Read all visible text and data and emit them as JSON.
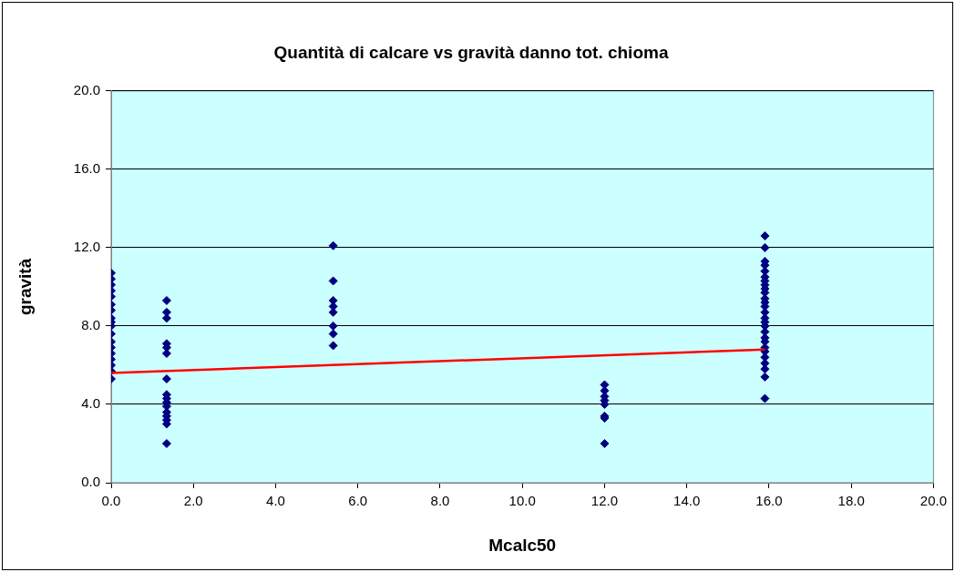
{
  "chart_data": {
    "type": "scatter",
    "title": "Quantità di calcare vs gravità danno tot. chioma",
    "xlabel": "Mcalc50",
    "ylabel": "gravità",
    "xlim": [
      0,
      20
    ],
    "xticks": [
      {
        "value": 0,
        "label": "0.0"
      },
      {
        "value": 2,
        "label": "2.0"
      },
      {
        "value": 4,
        "label": "4.0"
      },
      {
        "value": 6,
        "label": "6.0"
      },
      {
        "value": 8,
        "label": "8.0"
      },
      {
        "value": 10,
        "label": "10.0"
      },
      {
        "value": 12,
        "label": "12.0"
      },
      {
        "value": 14,
        "label": "14.0"
      },
      {
        "value": 16,
        "label": "16.0"
      },
      {
        "value": 18,
        "label": "18.0"
      },
      {
        "value": 20,
        "label": "20.0"
      }
    ],
    "ylim": [
      0,
      20
    ],
    "yticks": [
      {
        "value": 0,
        "label": "0.0"
      },
      {
        "value": 4,
        "label": "4.0"
      },
      {
        "value": 8,
        "label": "8.0"
      },
      {
        "value": 12,
        "label": "12.0"
      },
      {
        "value": 16,
        "label": "16.0"
      },
      {
        "value": 20,
        "label": "20.0"
      }
    ],
    "grid": "y",
    "legend": false,
    "marker": "diamond",
    "series": [
      {
        "color": "#000080",
        "x": [
          0,
          0,
          0,
          0,
          0,
          0,
          0,
          0,
          0,
          0,
          0,
          0,
          0,
          0,
          0,
          0,
          0,
          0,
          1.35,
          1.35,
          1.35,
          1.35,
          1.35,
          1.35,
          1.35,
          1.35,
          1.35,
          1.35,
          1.35,
          1.35,
          1.35,
          1.35,
          1.35,
          1.35,
          5.4,
          5.4,
          5.4,
          5.4,
          5.4,
          5.4,
          5.4,
          5.4,
          12,
          12,
          12,
          12,
          12,
          12,
          12,
          12,
          15.9,
          15.9,
          15.9,
          15.9,
          15.9,
          15.9,
          15.9,
          15.9,
          15.9,
          15.9,
          15.9,
          15.9,
          15.9,
          15.9,
          15.9,
          15.9,
          15.9,
          15.9,
          15.9,
          15.9,
          15.9,
          15.9,
          15.9,
          15.9,
          15.9,
          15.9,
          15.9
        ],
        "values": [
          10.7,
          10.4,
          10.1,
          9.8,
          9.5,
          9.1,
          8.8,
          8.4,
          8.2,
          8.0,
          7.6,
          7.2,
          6.9,
          6.6,
          6.3,
          6.0,
          5.7,
          5.3,
          9.3,
          8.7,
          8.4,
          7.1,
          6.9,
          6.6,
          5.3,
          4.5,
          4.3,
          4.1,
          3.9,
          3.6,
          3.4,
          3.2,
          3.0,
          2.0,
          12.1,
          10.3,
          9.3,
          9.0,
          8.7,
          8.0,
          7.6,
          7.0,
          5.0,
          4.7,
          4.4,
          4.2,
          4.0,
          3.4,
          3.3,
          2.0,
          12.6,
          12.0,
          11.3,
          11.1,
          10.8,
          10.5,
          10.3,
          10.1,
          9.9,
          9.7,
          9.4,
          9.2,
          9.0,
          8.7,
          8.4,
          8.2,
          8.0,
          7.7,
          7.4,
          7.2,
          6.9,
          6.7,
          6.4,
          6.1,
          5.8,
          5.4,
          4.3
        ]
      },
      {
        "type": "line",
        "color": "#ff0000",
        "x": [
          0,
          15.9
        ],
        "values": [
          5.6,
          6.8
        ],
        "marker": "none"
      }
    ]
  }
}
